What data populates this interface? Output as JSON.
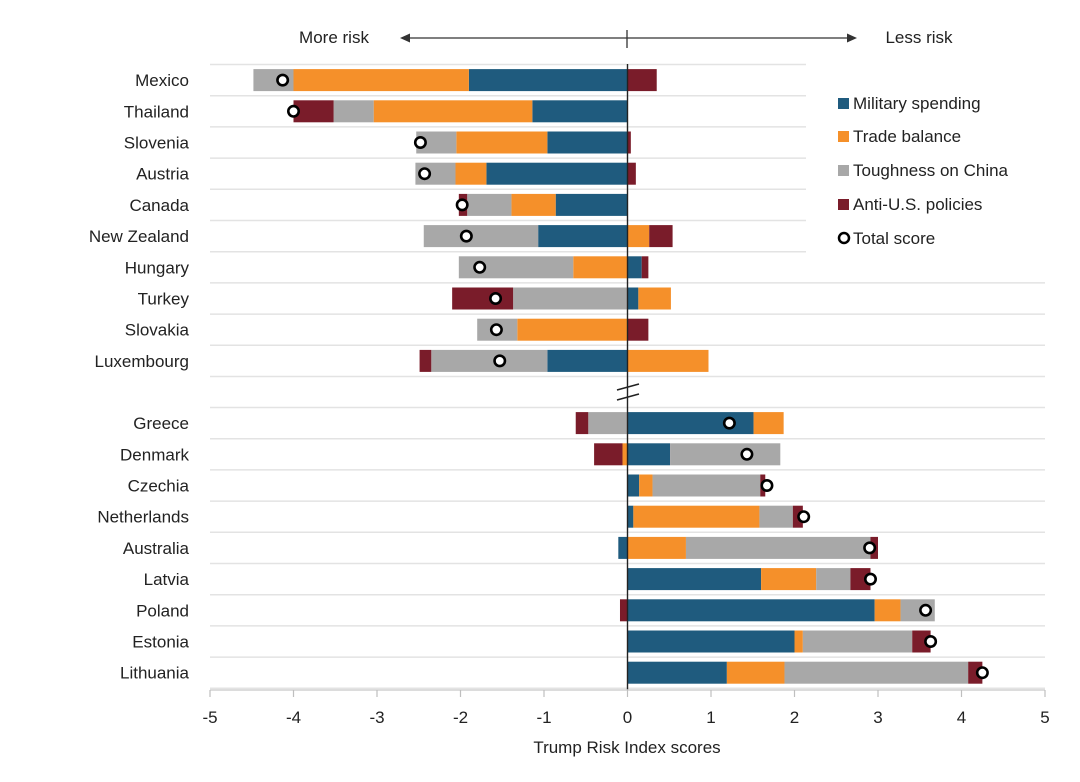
{
  "chart_data": {
    "type": "bar",
    "subtype": "stacked-horizontal-diverging",
    "title": "",
    "xlabel": "Trump Risk Index scores",
    "ylabel": "",
    "xlim": [
      -5,
      5
    ],
    "xticks": [
      -5,
      -4,
      -3,
      -2,
      -1,
      0,
      1,
      2,
      3,
      4,
      5
    ],
    "direction_labels": {
      "left": "More risk",
      "right": "Less risk"
    },
    "grid": true,
    "axis_break": "between Luxembourg and Greece",
    "legend": {
      "placement": "top-right",
      "entries": [
        {
          "key": "military",
          "label": "Military spending",
          "color": "#1f5b7e",
          "marker": "square"
        },
        {
          "key": "trade",
          "label": "Trade balance",
          "color": "#f5902a",
          "marker": "square"
        },
        {
          "key": "china",
          "label": "Toughness on China",
          "color": "#a8a8a8",
          "marker": "square"
        },
        {
          "key": "antius",
          "label": "Anti-U.S. policies",
          "color": "#7a1c2a",
          "marker": "square"
        },
        {
          "key": "total",
          "label": "Total score",
          "color": "#000000",
          "marker": "circle"
        }
      ]
    },
    "categories": [
      "Mexico",
      "Thailand",
      "Slovenia",
      "Austria",
      "Canada",
      "New Zealand",
      "Hungary",
      "Turkey",
      "Slovakia",
      "Luxembourg",
      "Greece",
      "Denmark",
      "Czechia",
      "Netherlands",
      "Australia",
      "Latvia",
      "Poland",
      "Estonia",
      "Lithuania"
    ],
    "groups": [
      [
        "Mexico",
        "Thailand",
        "Slovenia",
        "Austria",
        "Canada",
        "New Zealand",
        "Hungary",
        "Turkey",
        "Slovakia",
        "Luxembourg"
      ],
      [
        "Greece",
        "Denmark",
        "Czechia",
        "Netherlands",
        "Australia",
        "Latvia",
        "Poland",
        "Estonia",
        "Lithuania"
      ]
    ],
    "series": [
      {
        "name": "Military spending",
        "key": "military",
        "values": [
          -1.9,
          -1.14,
          -0.96,
          -1.69,
          -0.86,
          -1.07,
          0.17,
          0.13,
          0.0,
          -0.96,
          1.51,
          0.51,
          0.14,
          0.07,
          -0.11,
          1.6,
          2.96,
          2.0,
          1.19
        ]
      },
      {
        "name": "Trade balance",
        "key": "trade",
        "values": [
          -2.1,
          -1.9,
          -1.09,
          -0.37,
          -0.53,
          0.26,
          -0.65,
          0.39,
          -1.32,
          0.97,
          0.36,
          -0.06,
          0.16,
          1.51,
          0.7,
          0.66,
          0.31,
          0.1,
          0.69
        ]
      },
      {
        "name": "Toughness on China",
        "key": "china",
        "values": [
          -0.48,
          -0.48,
          -0.48,
          -0.48,
          -0.53,
          -1.37,
          -1.37,
          -1.37,
          -0.48,
          -1.39,
          -0.47,
          1.32,
          1.29,
          0.4,
          2.21,
          0.41,
          0.41,
          1.31,
          2.2
        ]
      },
      {
        "name": "Anti-U.S. policies",
        "key": "antius",
        "values": [
          0.35,
          -0.48,
          0.04,
          0.1,
          -0.1,
          0.28,
          0.08,
          -0.73,
          0.25,
          -0.14,
          -0.15,
          -0.34,
          0.06,
          0.12,
          0.09,
          0.24,
          -0.09,
          0.22,
          0.17
        ]
      },
      {
        "name": "Total score",
        "key": "total",
        "values": [
          -4.13,
          -4.0,
          -2.48,
          -2.43,
          -1.98,
          -1.93,
          -1.77,
          -1.58,
          -1.57,
          -1.53,
          1.22,
          1.43,
          1.67,
          2.11,
          2.9,
          2.91,
          3.57,
          3.63,
          4.25
        ]
      }
    ],
    "stack_order": {
      "note": "Segments listed from the axis (0) outward on each side",
      "Mexico": {
        "neg": [
          "military",
          "trade",
          "china"
        ],
        "pos": [
          "antius"
        ]
      },
      "Thailand": {
        "neg": [
          "military",
          "trade",
          "china",
          "antius"
        ],
        "pos": []
      },
      "Slovenia": {
        "neg": [
          "military",
          "trade",
          "china"
        ],
        "pos": [
          "antius"
        ]
      },
      "Austria": {
        "neg": [
          "military",
          "trade",
          "china"
        ],
        "pos": [
          "antius"
        ]
      },
      "Canada": {
        "neg": [
          "military",
          "trade",
          "china",
          "antius"
        ],
        "pos": []
      },
      "New Zealand": {
        "neg": [
          "military",
          "china"
        ],
        "pos": [
          "trade",
          "antius"
        ]
      },
      "Hungary": {
        "neg": [
          "trade",
          "china"
        ],
        "pos": [
          "military",
          "antius"
        ]
      },
      "Turkey": {
        "neg": [
          "china",
          "antius"
        ],
        "pos": [
          "military",
          "trade"
        ]
      },
      "Slovakia": {
        "neg": [
          "trade",
          "china"
        ],
        "pos": [
          "antius"
        ]
      },
      "Luxembourg": {
        "neg": [
          "military",
          "china",
          "antius"
        ],
        "pos": [
          "trade"
        ]
      },
      "Greece": {
        "neg": [
          "china",
          "antius"
        ],
        "pos": [
          "military",
          "trade"
        ]
      },
      "Denmark": {
        "neg": [
          "trade",
          "antius"
        ],
        "pos": [
          "military",
          "china"
        ]
      },
      "Czechia": {
        "neg": [],
        "pos": [
          "military",
          "trade",
          "china",
          "antius"
        ]
      },
      "Netherlands": {
        "neg": [],
        "pos": [
          "military",
          "trade",
          "china",
          "antius"
        ]
      },
      "Australia": {
        "neg": [
          "military"
        ],
        "pos": [
          "trade",
          "china",
          "antius"
        ]
      },
      "Latvia": {
        "neg": [],
        "pos": [
          "military",
          "trade",
          "china",
          "antius"
        ]
      },
      "Poland": {
        "neg": [
          "antius"
        ],
        "pos": [
          "military",
          "trade",
          "china"
        ]
      },
      "Estonia": {
        "neg": [],
        "pos": [
          "military",
          "trade",
          "china",
          "antius"
        ]
      },
      "Lithuania": {
        "neg": [],
        "pos": [
          "military",
          "trade",
          "china",
          "antius"
        ]
      }
    }
  }
}
